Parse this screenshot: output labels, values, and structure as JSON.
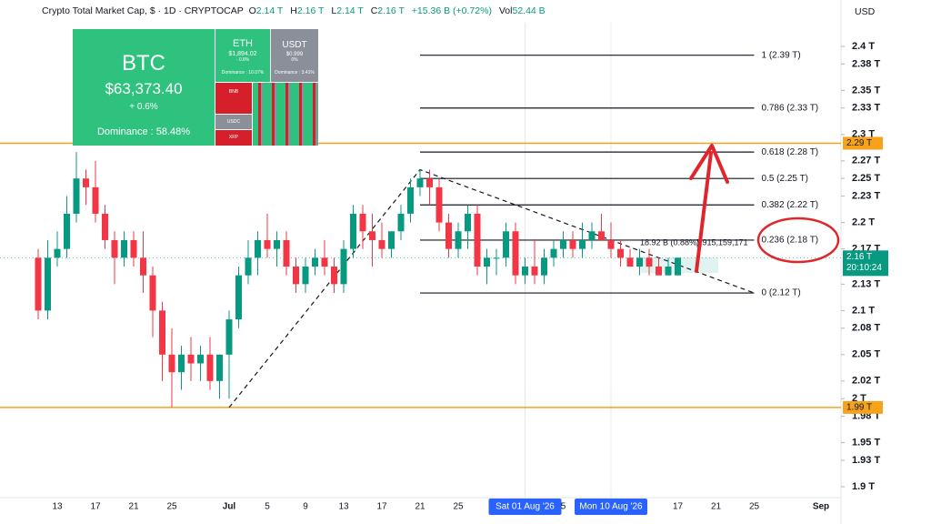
{
  "header": {
    "title": "Crypto Total Market Cap, $ · 1D · CRYPTOCAP",
    "ohlc": [
      {
        "key": "O",
        "value": "2.14 T"
      },
      {
        "key": "H",
        "value": "2.16 T"
      },
      {
        "key": "L",
        "value": "2.14 T"
      },
      {
        "key": "C",
        "value": "2.16 T"
      }
    ],
    "change": "+15.36 B (+0.72%)",
    "vol_key": "Vol",
    "vol": "52.44 B",
    "currency": "USD"
  },
  "heatmap": {
    "btc": {
      "name": "BTC",
      "price": "$63,373.40",
      "change": "+ 0.6%",
      "dominance": "Dominance : 58.48%"
    },
    "eth": {
      "name": "ETH",
      "price": "$1,894.02",
      "change": "- 0.8%",
      "dominance": "Dominance : 10.07%"
    },
    "usdt": {
      "name": "USDT",
      "price": "$0.999",
      "change": "0%",
      "dominance": "Dominance : 3.41%"
    },
    "small": [
      "BNB",
      "SOL",
      "USDC",
      "XRP"
    ]
  },
  "chart_data": {
    "type": "candlestick",
    "categories": [
      null,
      null,
      "13",
      null,
      null,
      null,
      "17",
      null,
      null,
      null,
      "21",
      null,
      null,
      null,
      "25",
      null,
      null,
      null,
      null,
      null,
      "Jul",
      null,
      null,
      null,
      "5",
      null,
      null,
      null,
      "9",
      null,
      null,
      null,
      "13",
      null,
      null,
      null,
      "17",
      null,
      null,
      null,
      "21",
      null,
      null,
      null,
      "25",
      null,
      null,
      null,
      null,
      null,
      null,
      "Sat 01 Aug '26",
      null,
      null,
      null,
      "5",
      null,
      null,
      null,
      null,
      "Mon 10 Aug '26",
      null,
      null,
      null,
      null,
      null,
      null,
      "17",
      null,
      null,
      null,
      "21",
      null,
      null,
      null,
      "25",
      null,
      null,
      null,
      null,
      null,
      null,
      "Sep",
      null
    ],
    "open": [
      2.16,
      2.1,
      2.16,
      2.17,
      2.21,
      2.25,
      2.24,
      2.21,
      2.18,
      2.16,
      2.18,
      2.16,
      2.14,
      2.1,
      2.05,
      2.03,
      2.05,
      2.04,
      2.05,
      2.02,
      2.05,
      2.09,
      2.14,
      2.16,
      2.18,
      2.17,
      2.18,
      2.15,
      2.13,
      2.15,
      2.16,
      2.15,
      2.13,
      2.17,
      2.21,
      2.19,
      2.18,
      2.17,
      2.19,
      2.21,
      2.24,
      2.25,
      2.24,
      2.2,
      2.17,
      2.19,
      2.21,
      2.15,
      2.16,
      2.16,
      2.19,
      2.14,
      2.15,
      2.14,
      2.16,
      2.17,
      2.18,
      2.17,
      2.18,
      2.19,
      2.18,
      2.17,
      2.16,
      2.15,
      2.16,
      2.15,
      2.14,
      2.14,
      null,
      null,
      null,
      null,
      null,
      null,
      null,
      null,
      null,
      null,
      null,
      null,
      null,
      null,
      null,
      null
    ],
    "high": [
      2.17,
      2.18,
      2.19,
      2.23,
      2.28,
      2.26,
      2.27,
      2.22,
      2.19,
      2.19,
      2.19,
      2.19,
      2.15,
      2.11,
      2.08,
      2.06,
      2.07,
      2.06,
      2.07,
      2.05,
      2.1,
      2.15,
      2.18,
      2.19,
      2.21,
      2.19,
      2.19,
      2.16,
      2.16,
      2.17,
      2.18,
      2.16,
      2.18,
      2.22,
      2.22,
      2.21,
      2.2,
      2.19,
      2.22,
      2.25,
      2.26,
      2.26,
      2.25,
      2.21,
      2.2,
      2.22,
      2.22,
      2.17,
      2.17,
      2.2,
      2.2,
      2.16,
      2.18,
      2.17,
      2.18,
      2.19,
      2.19,
      2.2,
      2.2,
      2.21,
      2.2,
      2.18,
      2.17,
      2.17,
      2.17,
      2.16,
      2.16,
      2.16,
      null,
      null,
      null,
      null,
      null,
      null,
      null,
      null,
      null,
      null,
      null,
      null,
      null,
      null,
      null,
      null
    ],
    "low": [
      2.09,
      2.09,
      2.15,
      2.16,
      2.2,
      2.22,
      2.2,
      2.17,
      2.13,
      2.15,
      2.15,
      2.12,
      2.07,
      2.02,
      1.99,
      2.01,
      2.02,
      2.02,
      2.01,
      2.0,
      2.0,
      2.08,
      2.13,
      2.14,
      2.16,
      2.15,
      2.14,
      2.12,
      2.12,
      2.14,
      2.14,
      2.12,
      2.12,
      2.16,
      2.17,
      2.15,
      2.16,
      2.16,
      2.18,
      2.2,
      2.23,
      2.22,
      2.19,
      2.16,
      2.16,
      2.17,
      2.14,
      2.13,
      2.14,
      2.15,
      2.13,
      2.13,
      2.13,
      2.13,
      2.15,
      2.16,
      2.16,
      2.16,
      2.17,
      2.18,
      2.16,
      2.15,
      2.15,
      2.14,
      2.14,
      2.14,
      2.14,
      2.14,
      null,
      null,
      null,
      null,
      null,
      null,
      null,
      null,
      null,
      null,
      null,
      null,
      null,
      null,
      null,
      null
    ],
    "close": [
      2.1,
      2.16,
      2.17,
      2.21,
      2.25,
      2.24,
      2.21,
      2.18,
      2.16,
      2.18,
      2.16,
      2.14,
      2.1,
      2.05,
      2.03,
      2.05,
      2.04,
      2.05,
      2.02,
      2.05,
      2.09,
      2.14,
      2.16,
      2.18,
      2.17,
      2.18,
      2.15,
      2.13,
      2.15,
      2.16,
      2.15,
      2.13,
      2.17,
      2.21,
      2.19,
      2.18,
      2.17,
      2.19,
      2.21,
      2.24,
      2.25,
      2.24,
      2.2,
      2.17,
      2.19,
      2.21,
      2.15,
      2.16,
      2.16,
      2.19,
      2.14,
      2.15,
      2.14,
      2.16,
      2.17,
      2.18,
      2.17,
      2.18,
      2.19,
      2.18,
      2.17,
      2.16,
      2.15,
      2.16,
      2.15,
      2.14,
      2.15,
      2.16,
      null,
      null,
      null,
      null,
      null,
      null,
      null,
      null,
      null,
      null,
      null,
      null,
      null,
      null,
      null,
      null
    ],
    "up_color": "#089981",
    "down_color": "#f23645",
    "ylim": [
      1.883,
      2.4
    ],
    "yticks": [
      {
        "value": 2.4,
        "label": "2.4 T"
      },
      {
        "value": 2.38,
        "label": "2.38 T"
      },
      {
        "value": 2.35,
        "label": "2.35 T"
      },
      {
        "value": 2.33,
        "label": "2.33 T"
      },
      {
        "value": 2.3,
        "label": "2.3 T"
      },
      {
        "value": 2.27,
        "label": "2.27 T"
      },
      {
        "value": 2.25,
        "label": "2.25 T"
      },
      {
        "value": 2.23,
        "label": "2.23 T"
      },
      {
        "value": 2.2,
        "label": "2.2 T"
      },
      {
        "value": 2.17,
        "label": "2.17 T"
      },
      {
        "value": 2.13,
        "label": "2.13 T"
      },
      {
        "value": 2.1,
        "label": "2.1 T"
      },
      {
        "value": 2.08,
        "label": "2.08 T"
      },
      {
        "value": 2.05,
        "label": "2.05 T"
      },
      {
        "value": 2.02,
        "label": "2.02 T"
      },
      {
        "value": 2,
        "label": "2 T"
      },
      {
        "value": 1.98,
        "label": "1.98 T"
      },
      {
        "value": 1.95,
        "label": "1.95 T"
      },
      {
        "value": 1.93,
        "label": "1.93 T"
      },
      {
        "value": 1.9,
        "label": "1.9 T"
      }
    ],
    "price_lines": [
      {
        "value": 2.29,
        "label": "2.29 T",
        "color": "#f7a21b"
      },
      {
        "value": 1.99,
        "label": "1.99 T",
        "color": "#f7a21b"
      }
    ],
    "last_price": {
      "value": 2.16,
      "label": "2.16 T",
      "countdown": "20:10:24",
      "color": "#089981"
    },
    "fib_levels": [
      {
        "value": 2.39,
        "label": "1 (2.39 T)"
      },
      {
        "value": 2.33,
        "label": "0.786 (2.33 T)"
      },
      {
        "value": 2.28,
        "label": "0.618 (2.28 T)"
      },
      {
        "value": 2.25,
        "label": "0.5 (2.25 T)"
      },
      {
        "value": 2.22,
        "label": "0.382 (2.22 T)"
      },
      {
        "value": 2.18,
        "label": "0.236 (2.18 T)"
      },
      {
        "value": 2.12,
        "label": "0 (2.12 T)"
      }
    ],
    "pattern_points": [
      1.99,
      2.26,
      2.12
    ],
    "annotations": [
      "18.92 B (0.88%)",
      "1,915,159,171"
    ]
  }
}
